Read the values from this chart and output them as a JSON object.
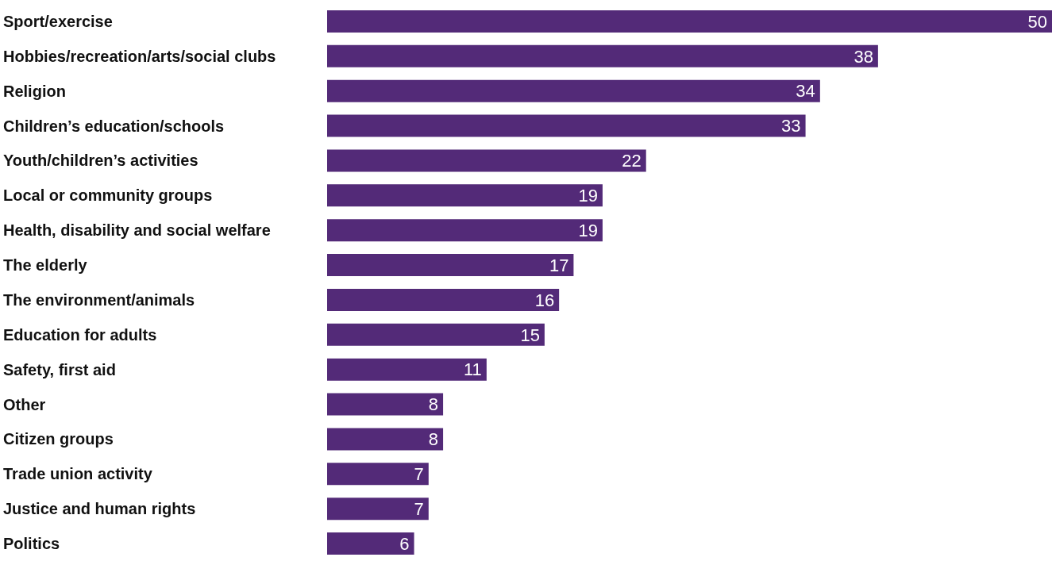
{
  "chart_data": {
    "type": "bar",
    "orientation": "horizontal",
    "categories": [
      "Sport/exercise",
      "Hobbies/recreation/arts/social clubs",
      "Religion",
      "Children’s education/schools",
      "Youth/children’s activities",
      "Local or community groups",
      "Health, disability and social welfare",
      "The elderly",
      "The environment/animals",
      "Education for adults",
      "Safety, first aid",
      "Other",
      "Citizen groups",
      "Trade union activity",
      "Justice and human rights",
      "Politics"
    ],
    "values": [
      50,
      38,
      34,
      33,
      22,
      19,
      19,
      17,
      16,
      15,
      11,
      8,
      8,
      7,
      7,
      6
    ],
    "color": "#532a78",
    "data_labels": true
  }
}
